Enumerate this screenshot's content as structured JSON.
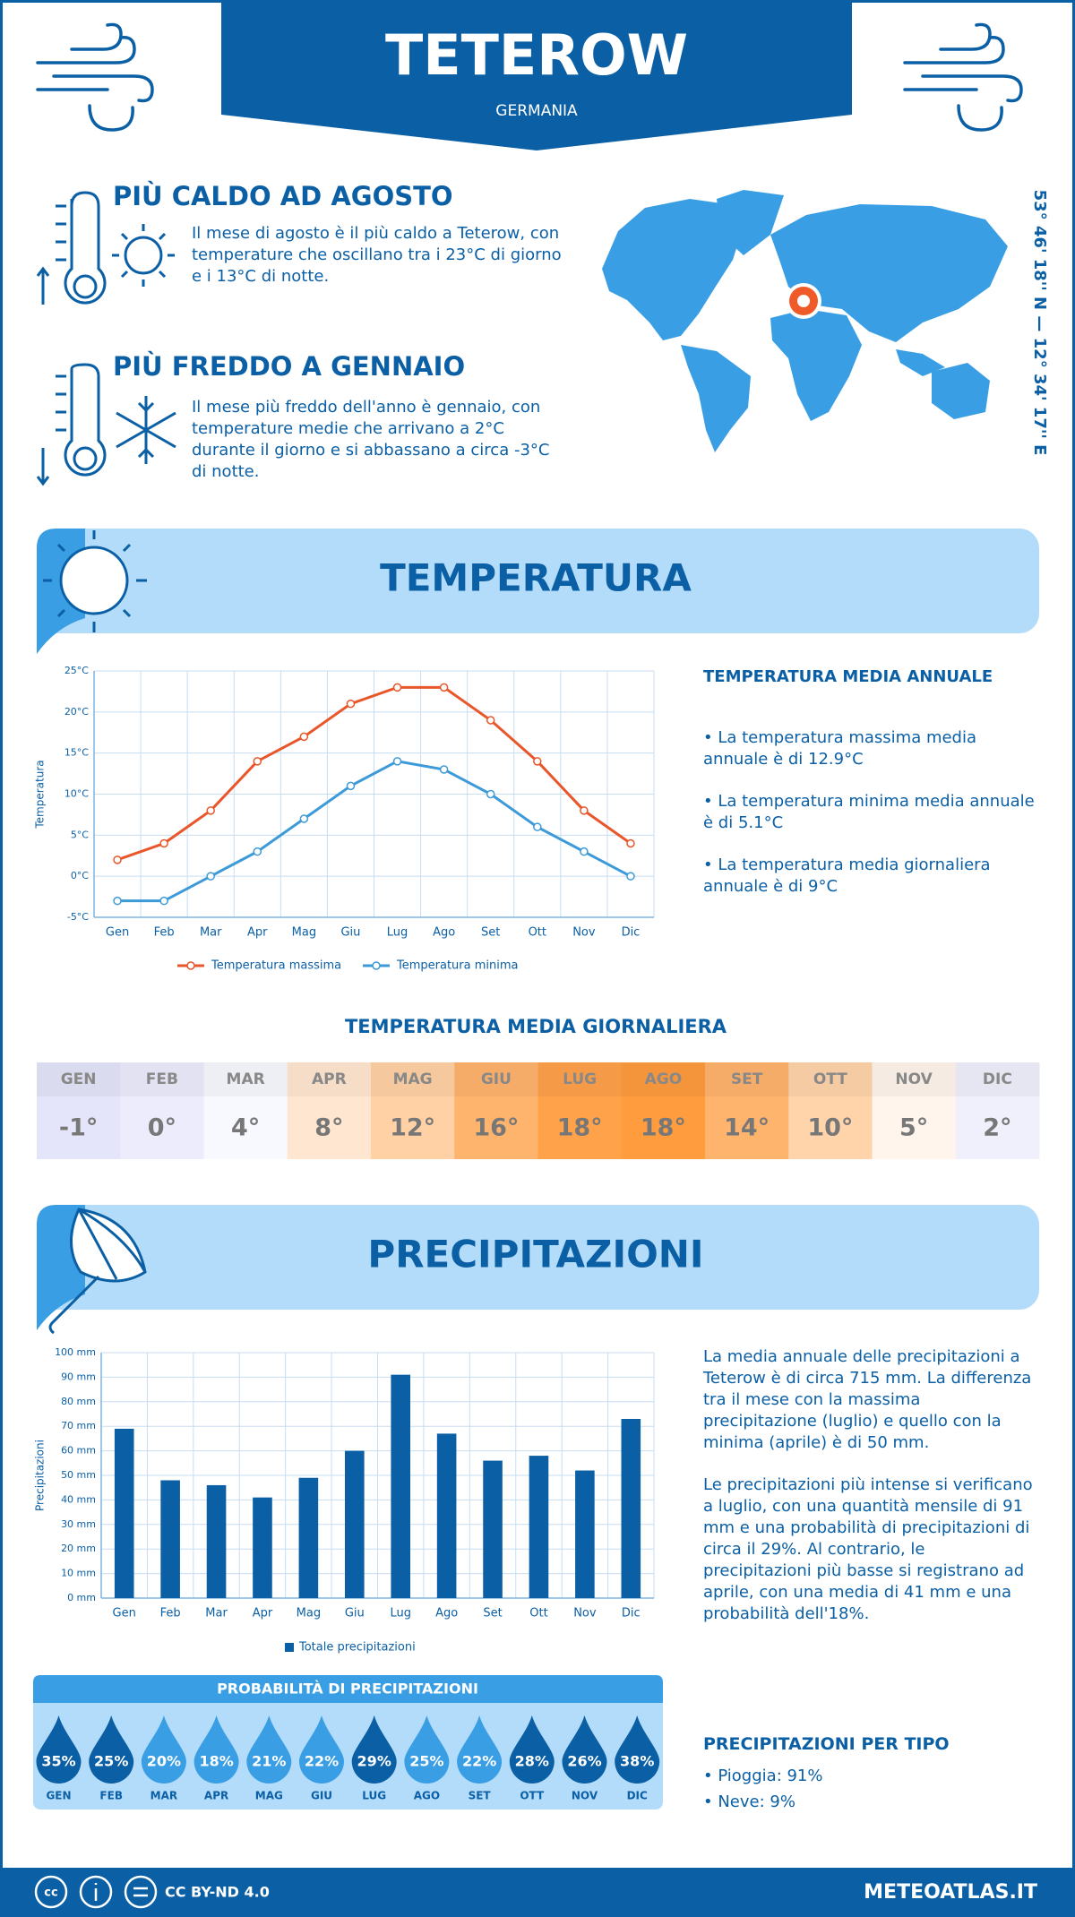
{
  "header": {
    "title": "TETEROW",
    "subtitle": "GERMANIA"
  },
  "warmest": {
    "title": "PIÙ CALDO AD AGOSTO",
    "text": "Il mese di agosto è il più caldo a Teterow, con temperature che oscillano tra i 23°C di giorno e i 13°C di notte."
  },
  "coldest": {
    "title": "PIÙ FREDDO A GENNAIO",
    "text": "Il mese più freddo dell'anno è gennaio, con temperature medie che arrivano a 2°C durante il giorno e si abbassano a circa -3°C di notte."
  },
  "coordinates": "53° 46' 18'' N — 12° 34' 17'' E",
  "temperature_section": {
    "title": "TEMPERATURA",
    "summary_title": "TEMPERATURA MEDIA ANNUALE",
    "bullets": [
      "• La temperatura massima media annuale è di 12.9°C",
      "• La temperatura minima media annuale è di 5.1°C",
      "• La temperatura media giornaliera annuale è di 9°C"
    ]
  },
  "chart_data": [
    {
      "type": "line",
      "y_label": "Temperatura",
      "categories": [
        "Gen",
        "Feb",
        "Mar",
        "Apr",
        "Mag",
        "Giu",
        "Lug",
        "Ago",
        "Set",
        "Ott",
        "Nov",
        "Dic"
      ],
      "ylim": [
        -5,
        25
      ],
      "yticks": [
        {
          "value": -5,
          "label": "-5°C"
        },
        {
          "value": 0,
          "label": "0°C"
        },
        {
          "value": 5,
          "label": "5°C"
        },
        {
          "value": 10,
          "label": "10°C"
        },
        {
          "value": 15,
          "label": "15°C"
        },
        {
          "value": 20,
          "label": "20°C"
        },
        {
          "value": 25,
          "label": "25°C"
        }
      ],
      "grid": true,
      "series": [
        {
          "name": "Temperatura massima",
          "color": "#e8562a",
          "values": [
            2,
            4,
            8,
            14,
            17,
            21,
            23,
            23,
            19,
            14,
            8,
            4
          ]
        },
        {
          "name": "Temperatura minima",
          "color": "#3d9ad8",
          "values": [
            -3,
            -3,
            0,
            3,
            7,
            11,
            14,
            13,
            10,
            6,
            3,
            0
          ]
        }
      ]
    },
    {
      "type": "bar",
      "y_label": "Precipitazioni",
      "categories": [
        "Gen",
        "Feb",
        "Mar",
        "Apr",
        "Mag",
        "Giu",
        "Lug",
        "Ago",
        "Set",
        "Ott",
        "Nov",
        "Dic"
      ],
      "ylim": [
        0,
        100
      ],
      "yticks": [
        {
          "value": 0,
          "label": "0 mm"
        },
        {
          "value": 10,
          "label": "10 mm"
        },
        {
          "value": 20,
          "label": "20 mm"
        },
        {
          "value": 30,
          "label": "30 mm"
        },
        {
          "value": 40,
          "label": "40 mm"
        },
        {
          "value": 50,
          "label": "50 mm"
        },
        {
          "value": 60,
          "label": "60 mm"
        },
        {
          "value": 70,
          "label": "70 mm"
        },
        {
          "value": 80,
          "label": "80 mm"
        },
        {
          "value": 90,
          "label": "90 mm"
        },
        {
          "value": 100,
          "label": "100 mm"
        }
      ],
      "grid": true,
      "series": [
        {
          "name": "Totale precipitazioni",
          "color": "#0b5fa5",
          "values": [
            69,
            48,
            46,
            41,
            49,
            60,
            91,
            67,
            56,
            58,
            52,
            73
          ]
        }
      ]
    }
  ],
  "daily_temperature": {
    "title": "TEMPERATURA MEDIA GIORNALIERA",
    "categories": [
      "GEN",
      "FEB",
      "MAR",
      "APR",
      "MAG",
      "GIU",
      "LUG",
      "AGO",
      "SET",
      "OTT",
      "NOV",
      "DIC"
    ],
    "values": [
      -1,
      0,
      4,
      8,
      12,
      16,
      18,
      18,
      14,
      10,
      5,
      2
    ],
    "value_labels": [
      "-1°",
      "0°",
      "4°",
      "8°",
      "12°",
      "16°",
      "18°",
      "18°",
      "14°",
      "10°",
      "5°",
      "2°"
    ],
    "colors": [
      "#e4e4fa",
      "#ececfc",
      "#f8f8ff",
      "#ffe6d0",
      "#ffd1a4",
      "#ffb46e",
      "#ffa24a",
      "#ff9c3e",
      "#ffb46e",
      "#ffd4aa",
      "#fff5ec",
      "#f0f0fd"
    ]
  },
  "precipitation_section": {
    "title": "PRECIPITAZIONI",
    "paragraphs": [
      "La media annuale delle precipitazioni a Teterow è di circa 715 mm. La differenza tra il mese con la massima precipitazione (luglio) e quello con la minima (aprile) è di 50 mm.",
      "Le precipitazioni più intense si verificano a luglio, con una quantità mensile di 91 mm e una probabilità di precipitazioni di circa il 29%. Al contrario, le precipitazioni più basse si registrano ad aprile, con una media di 41 mm e una probabilità dell'18%."
    ]
  },
  "precipitation_probability": {
    "title": "PROBABILITÀ DI PRECIPITAZIONI",
    "categories": [
      "GEN",
      "FEB",
      "MAR",
      "APR",
      "MAG",
      "GIU",
      "LUG",
      "AGO",
      "SET",
      "OTT",
      "NOV",
      "DIC"
    ],
    "values": [
      35,
      25,
      20,
      18,
      21,
      22,
      29,
      25,
      22,
      28,
      26,
      38
    ],
    "value_labels": [
      "35%",
      "25%",
      "20%",
      "18%",
      "21%",
      "22%",
      "29%",
      "25%",
      "22%",
      "28%",
      "26%",
      "38%"
    ],
    "colors": [
      "#0b5fa5",
      "#0b5fa5",
      "#3a9ee4",
      "#3a9ee4",
      "#3a9ee4",
      "#3a9ee4",
      "#0b5fa5",
      "#3a9ee4",
      "#3a9ee4",
      "#0b5fa5",
      "#0b5fa5",
      "#0b5fa5"
    ]
  },
  "precipitation_types": {
    "title": "PRECIPITAZIONI PER TIPO",
    "items": [
      "• Pioggia: 91%",
      "• Neve: 9%"
    ]
  },
  "footer": {
    "license": "CC BY-ND 4.0",
    "site": "METEOATLAS.IT"
  }
}
